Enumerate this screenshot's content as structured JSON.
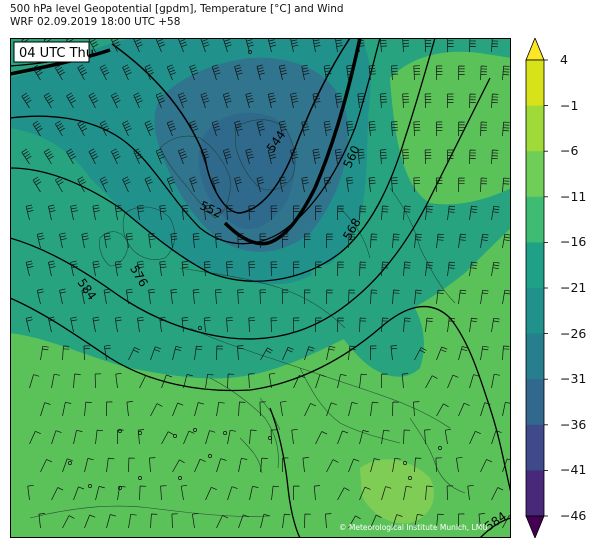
{
  "header": {
    "title_line1": "500 hPa level Geopotential [gpdm], Temperature [°C] and Wind",
    "title_line2": "WRF 02.09.2019 18:00 UTC +58"
  },
  "map": {
    "time_label": "04 UTC Thu",
    "copyright": "© Meteorological Institute Munich, LMU",
    "contour_labels": [
      "544",
      "552",
      "560",
      "568",
      "576",
      "584",
      "584"
    ],
    "colors": {
      "cold_core": "#2f6a8c",
      "cold": "#31748d",
      "mid": "#21918c",
      "mild": "#27a47f",
      "warm": "#5bc25a",
      "warmer": "#7fcd55"
    }
  },
  "colorbar": {
    "tick_labels": [
      "4",
      "−1",
      "−6",
      "−11",
      "−16",
      "−21",
      "−26",
      "−31",
      "−36",
      "−41",
      "−46"
    ],
    "colors": [
      "#fde725",
      "#d8e219",
      "#a0da39",
      "#6ece58",
      "#3fbc73",
      "#1fa187",
      "#21918c",
      "#277f8e",
      "#31688e",
      "#3e4a89",
      "#482878",
      "#440154"
    ]
  }
}
